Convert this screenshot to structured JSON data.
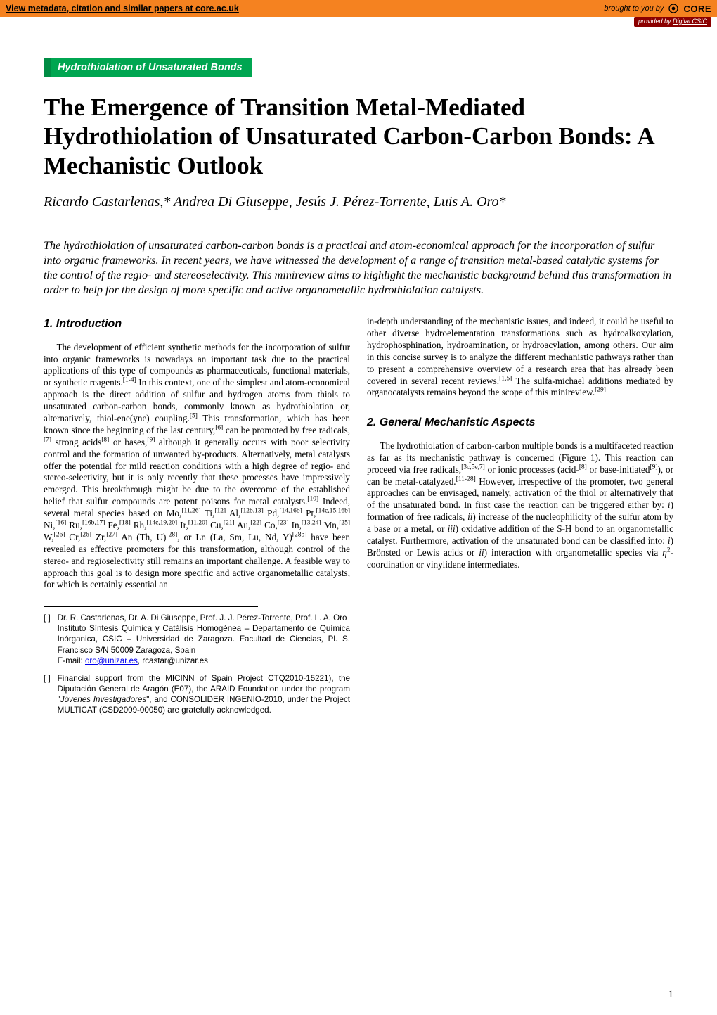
{
  "banner": {
    "bg_color": "#f58220",
    "left_text": "View metadata, citation and similar papers at core.ac.uk",
    "right_prefix": "brought to you by",
    "logo_text": "CORE",
    "provided_by_prefix": "provided by ",
    "provided_by_source": "Digital.CSIC",
    "provided_bg": "#8b0000"
  },
  "category": {
    "label": "Hydrothiolation of Unsaturated Bonds",
    "bg": "#00a651",
    "border": "#008c44"
  },
  "title": "The Emergence of Transition Metal-Mediated Hydrothiolation of Unsaturated Carbon-Carbon Bonds: A Mechanistic Outlook",
  "authors": "Ricardo Castarlenas,* Andrea Di Giuseppe, Jesús J. Pérez-Torrente, Luis A. Oro*",
  "abstract": "The hydrothiolation of unsaturated carbon-carbon bonds is a practical and atom-economical approach for the incorporation of sulfur into organic frameworks. In recent years, we have witnessed the development of a range of transition metal-based catalytic systems for the control of the regio- and stereoselectivity. This minireview aims to highlight the mechanistic background behind this transformation in order to help for the design of more specific and active organometallic hydrothiolation catalysts.",
  "sections": {
    "intro_head": "1. Introduction",
    "mech_head": "2. General Mechanistic Aspects"
  },
  "body": {
    "intro_para": "The development of efficient synthetic methods for the incorporation of sulfur into organic frameworks is nowadays an important task due to the practical applications of this type of compounds as pharmaceuticals, functional materials, or synthetic reagents.[1-4] In this context, one of the simplest and atom-economical approach is the direct addition of sulfur and hydrogen atoms from thiols to unsaturated carbon-carbon bonds, commonly known as hydrothiolation or, alternatively, thiol-ene(yne) coupling.[5] This transformation, which has been known since the beginning of the last century,[6] can be promoted by free radicals,[7] strong acids[8] or bases,[9] although it generally occurs with poor selectivity control and the formation of unwanted by-products. Alternatively, metal catalysts offer the potential for mild reaction conditions with a high degree of regio- and stereo-selectivity, but it is only recently that these processes have impressively emerged. This breakthrough might be due to the overcome of the established belief that sulfur compounds are potent poisons for metal catalysts.[10] Indeed, several metal species based on Mo,[11,26] Ti,[12] Al,[12b,13] Pd,[14,16b] Pt,[14c,15,16b] Ni,[16] Ru,[16b,17] Fe,[18] Rh,[14c,19,20] Ir,[11,20] Cu,[21] Au,[22] Co,[23] In,[13,24] Mn,[25] W,[26] Cr,[26] Zr,[27] An (Th, U)[28], or Ln (La, Sm, Lu, Nd, Y)[28b] have been revealed as effective promoters for this transformation, although control of the stereo- and regioselectivity still remains an important challenge. A feasible way to approach this goal is to design more specific and active organometallic catalysts, for which is certainly essential an",
    "right_top_para": "in-depth understanding of the mechanistic issues, and indeed, it could be useful to other diverse hydroelementation transformations such as hydroalkoxylation, hydrophosphination, hydroamination, or hydroacylation, among others. Our aim in this concise survey is to analyze the different mechanistic pathways rather than to present a comprehensive overview of a research area that has already been covered in several recent reviews.[1,5] The sulfa-michael additions mediated by organocatalysts remains beyond the scope of this minireview.[29]",
    "mech_para": "The hydrothiolation of carbon-carbon multiple bonds is a multifaceted reaction as far as its mechanistic pathway is concerned (Figure 1). This reaction can proceed via free radicals,[3c,5e,7] or ionic processes (acid-[8] or base-initiated[9]), or can be metal-catalyzed.[11-28] However, irrespective of the promoter, two general approaches can be envisaged, namely, activation of the thiol or alternatively that of the unsaturated bond. In first case the reaction can be triggered either by: i) formation of free radicals, ii) increase of the nucleophilicity of the sulfur atom by a base or a metal, or iii) oxidative addition of the S-H bond to an organometallic catalyst. Furthermore, activation of the unsaturated bond can be classified into: i) Brönsted or Lewis acids or ii) interaction with organometallic species via η2-coordination or vinylidene intermediates."
  },
  "footnotes": {
    "marker": "[  ]",
    "fn1_lines": "Dr. R. Castarlenas, Dr. A. Di Giuseppe, Prof. J. J. Pérez-Torrente, Prof. L. A. Oro\nInstituto Síntesis Química y Catálisis Homogénea – Departamento de Química Inórganica, CSIC – Universidad de Zaragoza. Facultad de Ciencias, Pl. S. Francisco S/N 50009 Zaragoza, Spain",
    "fn1_email_label": "E-mail: ",
    "fn1_email_link": "oro@unizar.es",
    "fn1_email_rest": ", rcastar@unizar.es",
    "fn2_text_a": "Financial support from the MICINN of Spain Project CTQ2010-15221), the Diputación General de Aragón (E07), the ARAID Foundation under the program \"",
    "fn2_ital": "Jóvenes Investigadores",
    "fn2_text_b": "\", and CONSOLIDER INGENIO-2010, under the Project MULTICAT (CSD2009-00050) are gratefully acknowledged."
  },
  "page_number": "1"
}
